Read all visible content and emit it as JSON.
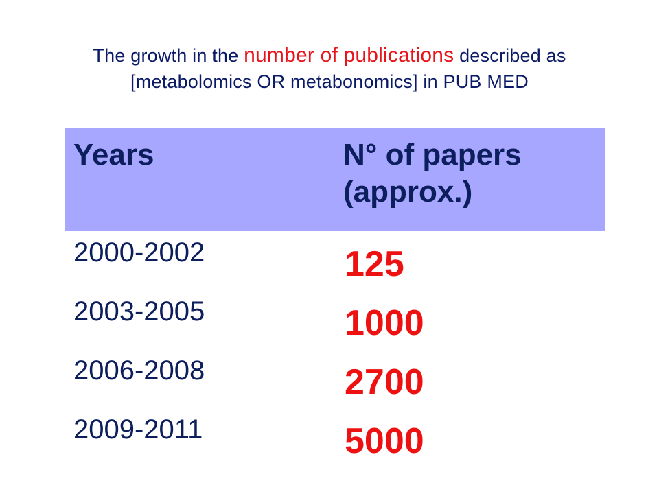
{
  "title": {
    "line1_pre": "The growth in the ",
    "line1_highlight": "number of publications",
    "line1_post": " described as",
    "line2": "[metabolomics OR metabonomics] in PUB MED"
  },
  "table": {
    "header": {
      "years": "Years",
      "papers_line1": "N° of papers",
      "papers_line2": "(approx.)"
    },
    "rows": [
      {
        "years": "2000-2002",
        "papers": "125"
      },
      {
        "years": "2003-2005",
        "papers": "1000"
      },
      {
        "years": "2006-2008",
        "papers": "2700"
      },
      {
        "years": "2009-2011",
        "papers": "5000"
      }
    ]
  },
  "colors": {
    "title_text": "#0a1a66",
    "highlight": "#e8141b",
    "header_bg": "#a7a7ff",
    "value_text": "#ee1111"
  }
}
